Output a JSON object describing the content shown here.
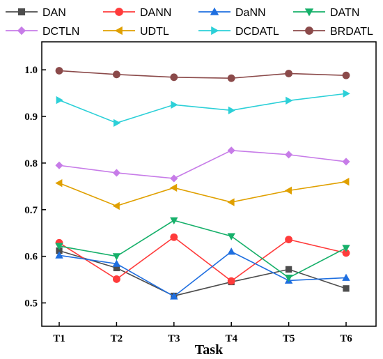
{
  "chart_data": {
    "type": "line",
    "categories": [
      "T1",
      "T2",
      "T3",
      "T4",
      "T5",
      "T6"
    ],
    "xlabel": "Task",
    "ylabel": "",
    "ylim": [
      0.45,
      1.06
    ],
    "yticks": [
      "0.5",
      "0.6",
      "0.7",
      "0.8",
      "0.9",
      "1.0"
    ],
    "grid": false,
    "legend": "top",
    "series": [
      {
        "name": "DAN",
        "color": "#4d4d4d",
        "marker": "square",
        "values": [
          0.612,
          0.575,
          0.515,
          0.545,
          0.572,
          0.531
        ]
      },
      {
        "name": "DANN",
        "color": "#ff3b3b",
        "marker": "circle",
        "values": [
          0.629,
          0.551,
          0.641,
          0.547,
          0.636,
          0.607
        ]
      },
      {
        "name": "DaNN",
        "color": "#1f6fe0",
        "marker": "triangle-up",
        "values": [
          0.602,
          0.584,
          0.514,
          0.61,
          0.548,
          0.554
        ]
      },
      {
        "name": "DATN",
        "color": "#16b06a",
        "marker": "triangle-down",
        "values": [
          0.622,
          0.6,
          0.677,
          0.643,
          0.554,
          0.618
        ]
      },
      {
        "name": "DCTLN",
        "color": "#c77ce8",
        "marker": "diamond",
        "values": [
          0.795,
          0.779,
          0.767,
          0.827,
          0.818,
          0.803
        ]
      },
      {
        "name": "UDTL",
        "color": "#e0a000",
        "marker": "triangle-left",
        "values": [
          0.757,
          0.708,
          0.747,
          0.716,
          0.741,
          0.76
        ]
      },
      {
        "name": "DCDATL",
        "color": "#2cd0d8",
        "marker": "triangle-right",
        "values": [
          0.935,
          0.886,
          0.925,
          0.913,
          0.934,
          0.949
        ]
      },
      {
        "name": "BRDATL",
        "color": "#8b4a4a",
        "marker": "circle",
        "values": [
          0.998,
          0.99,
          0.984,
          0.982,
          0.992,
          0.988
        ]
      }
    ]
  }
}
